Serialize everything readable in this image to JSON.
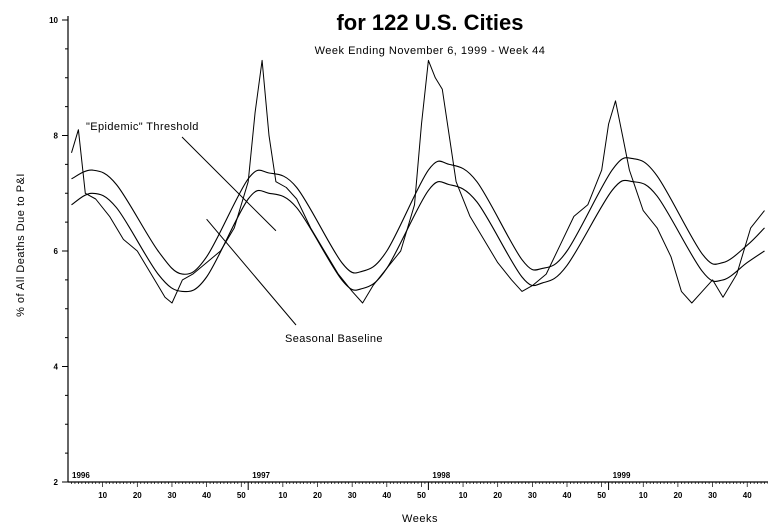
{
  "chart_data": {
    "type": "line",
    "title": "for 122 U.S. Cities",
    "subtitle": "Week Ending November 6, 1999 - Week 44",
    "xlabel": "Weeks",
    "ylabel": "% of All Deaths Due to P&I",
    "ylim": [
      2,
      10
    ],
    "yticks": [
      "2",
      "4",
      "6",
      "8",
      "10"
    ],
    "year_labels": [
      "1996",
      "1997",
      "1998",
      "1999"
    ],
    "week_tick_labels": [
      "10",
      "20",
      "30",
      "40",
      "50"
    ],
    "grid": false,
    "legend": "none",
    "annotations": [
      {
        "text": "\"Epidemic\" Threshold"
      },
      {
        "text": "Seasonal Baseline"
      }
    ],
    "series": [
      {
        "role": "epidemic-threshold",
        "points": [
          [
            1,
            7.25
          ],
          [
            7,
            7.4
          ],
          [
            14,
            7.15
          ],
          [
            26,
            6.0
          ],
          [
            33,
            5.6
          ],
          [
            40,
            5.9
          ],
          [
            52,
            7.25
          ],
          [
            58,
            7.35
          ],
          [
            66,
            7.1
          ],
          [
            79,
            5.8
          ],
          [
            85,
            5.65
          ],
          [
            92,
            6.0
          ],
          [
            104,
            7.4
          ],
          [
            110,
            7.5
          ],
          [
            118,
            7.2
          ],
          [
            131,
            5.85
          ],
          [
            137,
            5.7
          ],
          [
            144,
            6.0
          ],
          [
            157,
            7.4
          ],
          [
            163,
            7.6
          ],
          [
            170,
            7.3
          ],
          [
            183,
            5.95
          ],
          [
            189,
            5.8
          ],
          [
            196,
            6.1
          ],
          [
            201,
            6.4
          ]
        ]
      },
      {
        "role": "seasonal-baseline",
        "points": [
          [
            1,
            6.8
          ],
          [
            7,
            7.0
          ],
          [
            14,
            6.75
          ],
          [
            26,
            5.6
          ],
          [
            33,
            5.3
          ],
          [
            40,
            5.55
          ],
          [
            52,
            6.9
          ],
          [
            58,
            7.0
          ],
          [
            66,
            6.75
          ],
          [
            79,
            5.5
          ],
          [
            85,
            5.35
          ],
          [
            92,
            5.7
          ],
          [
            104,
            7.05
          ],
          [
            110,
            7.15
          ],
          [
            118,
            6.85
          ],
          [
            131,
            5.55
          ],
          [
            137,
            5.45
          ],
          [
            144,
            5.75
          ],
          [
            157,
            7.05
          ],
          [
            163,
            7.2
          ],
          [
            170,
            6.95
          ],
          [
            183,
            5.65
          ],
          [
            189,
            5.5
          ],
          [
            196,
            5.8
          ],
          [
            201,
            6.0
          ]
        ]
      },
      {
        "role": "observed",
        "points": [
          [
            1,
            7.7
          ],
          [
            3,
            8.1
          ],
          [
            5,
            7.0
          ],
          [
            8,
            6.9
          ],
          [
            12,
            6.6
          ],
          [
            16,
            6.2
          ],
          [
            20,
            6.0
          ],
          [
            24,
            5.6
          ],
          [
            26,
            5.4
          ],
          [
            28,
            5.2
          ],
          [
            30,
            5.1
          ],
          [
            33,
            5.5
          ],
          [
            36,
            5.6
          ],
          [
            40,
            5.8
          ],
          [
            44,
            6.0
          ],
          [
            48,
            6.4
          ],
          [
            52,
            7.2
          ],
          [
            54,
            8.4
          ],
          [
            56,
            9.3
          ],
          [
            58,
            8.0
          ],
          [
            60,
            7.2
          ],
          [
            63,
            7.1
          ],
          [
            66,
            6.9
          ],
          [
            70,
            6.4
          ],
          [
            74,
            6.0
          ],
          [
            78,
            5.6
          ],
          [
            82,
            5.3
          ],
          [
            85,
            5.1
          ],
          [
            88,
            5.4
          ],
          [
            92,
            5.7
          ],
          [
            96,
            6.0
          ],
          [
            100,
            6.8
          ],
          [
            102,
            8.2
          ],
          [
            104,
            9.3
          ],
          [
            106,
            9.0
          ],
          [
            108,
            8.8
          ],
          [
            110,
            8.0
          ],
          [
            112,
            7.2
          ],
          [
            116,
            6.6
          ],
          [
            120,
            6.2
          ],
          [
            124,
            5.8
          ],
          [
            128,
            5.5
          ],
          [
            131,
            5.3
          ],
          [
            134,
            5.4
          ],
          [
            138,
            5.6
          ],
          [
            142,
            6.1
          ],
          [
            146,
            6.6
          ],
          [
            150,
            6.8
          ],
          [
            154,
            7.4
          ],
          [
            156,
            8.2
          ],
          [
            158,
            8.6
          ],
          [
            160,
            8.0
          ],
          [
            162,
            7.4
          ],
          [
            166,
            6.7
          ],
          [
            170,
            6.4
          ],
          [
            174,
            5.9
          ],
          [
            177,
            5.3
          ],
          [
            180,
            5.1
          ],
          [
            183,
            5.3
          ],
          [
            186,
            5.5
          ],
          [
            189,
            5.2
          ],
          [
            193,
            5.6
          ],
          [
            197,
            6.4
          ],
          [
            201,
            6.7
          ]
        ]
      }
    ]
  }
}
